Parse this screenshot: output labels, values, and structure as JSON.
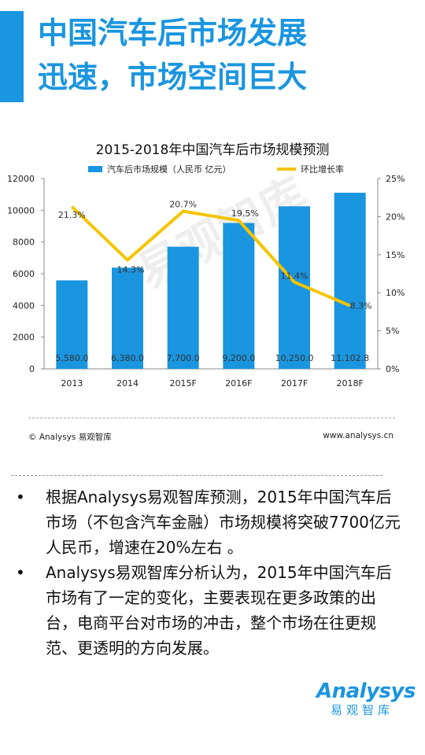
{
  "header": {
    "title_line1": "中国汽车后市场发展",
    "title_line2": "迅速，市场空间巨大"
  },
  "chart_data": {
    "type": "bar+line",
    "title": "2015-2018年中国汽车后市场规模预测",
    "categories": [
      "2013",
      "2014",
      "2015F",
      "2016F",
      "2017F",
      "2018F"
    ],
    "series": [
      {
        "name": "汽车后市场规模（人民币 亿元）",
        "type": "bar",
        "axis": "left",
        "values": [
          5580.0,
          6380.0,
          7700.0,
          9200.0,
          10250.0,
          11102.8
        ],
        "labels": [
          "5,580.0",
          "6,380.0",
          "7,700.0",
          "9,200.0",
          "10,250.0",
          "11,102.8"
        ],
        "color": "#1a95e0"
      },
      {
        "name": "环比增长率",
        "type": "line",
        "axis": "right",
        "values": [
          21.3,
          14.3,
          20.7,
          19.5,
          11.4,
          8.3
        ],
        "labels": [
          "21.3%",
          "14.3%",
          "20.7%",
          "19.5%",
          "11.4%",
          "8.3%"
        ],
        "color": "#f5c400"
      }
    ],
    "y_left": {
      "ylim": [
        0,
        12000
      ],
      "ticks": [
        "0",
        "2000",
        "4000",
        "6000",
        "8000",
        "10000",
        "12000"
      ]
    },
    "y_right": {
      "ylim": [
        0,
        25
      ],
      "ticks": [
        "0%",
        "5%",
        "10%",
        "15%",
        "20%",
        "25%"
      ]
    },
    "legend_position": "top",
    "grid": false
  },
  "watermark": "易观智库",
  "source": {
    "left": "© Analysys 易观智库",
    "right": "www.analysys.cn"
  },
  "bullets": [
    "根据Analysys易观智库预测，2015年中国汽车后市场（不包含汽车金融）市场规模将突破7700亿元人民币，增速在20%左右 。",
    "Analysys易观智库分析认为，2015年中国汽车后市场有了一定的变化，主要表现在更多政策的出台，电商平台对市场的冲击，整个市场在往更规范、更透明的方向发展。"
  ],
  "bullet_symbol": "•",
  "logo": {
    "main": "Analysys",
    "sub": "易观智库"
  },
  "colors": {
    "accent": "#1a95e0",
    "line": "#f5c400"
  }
}
